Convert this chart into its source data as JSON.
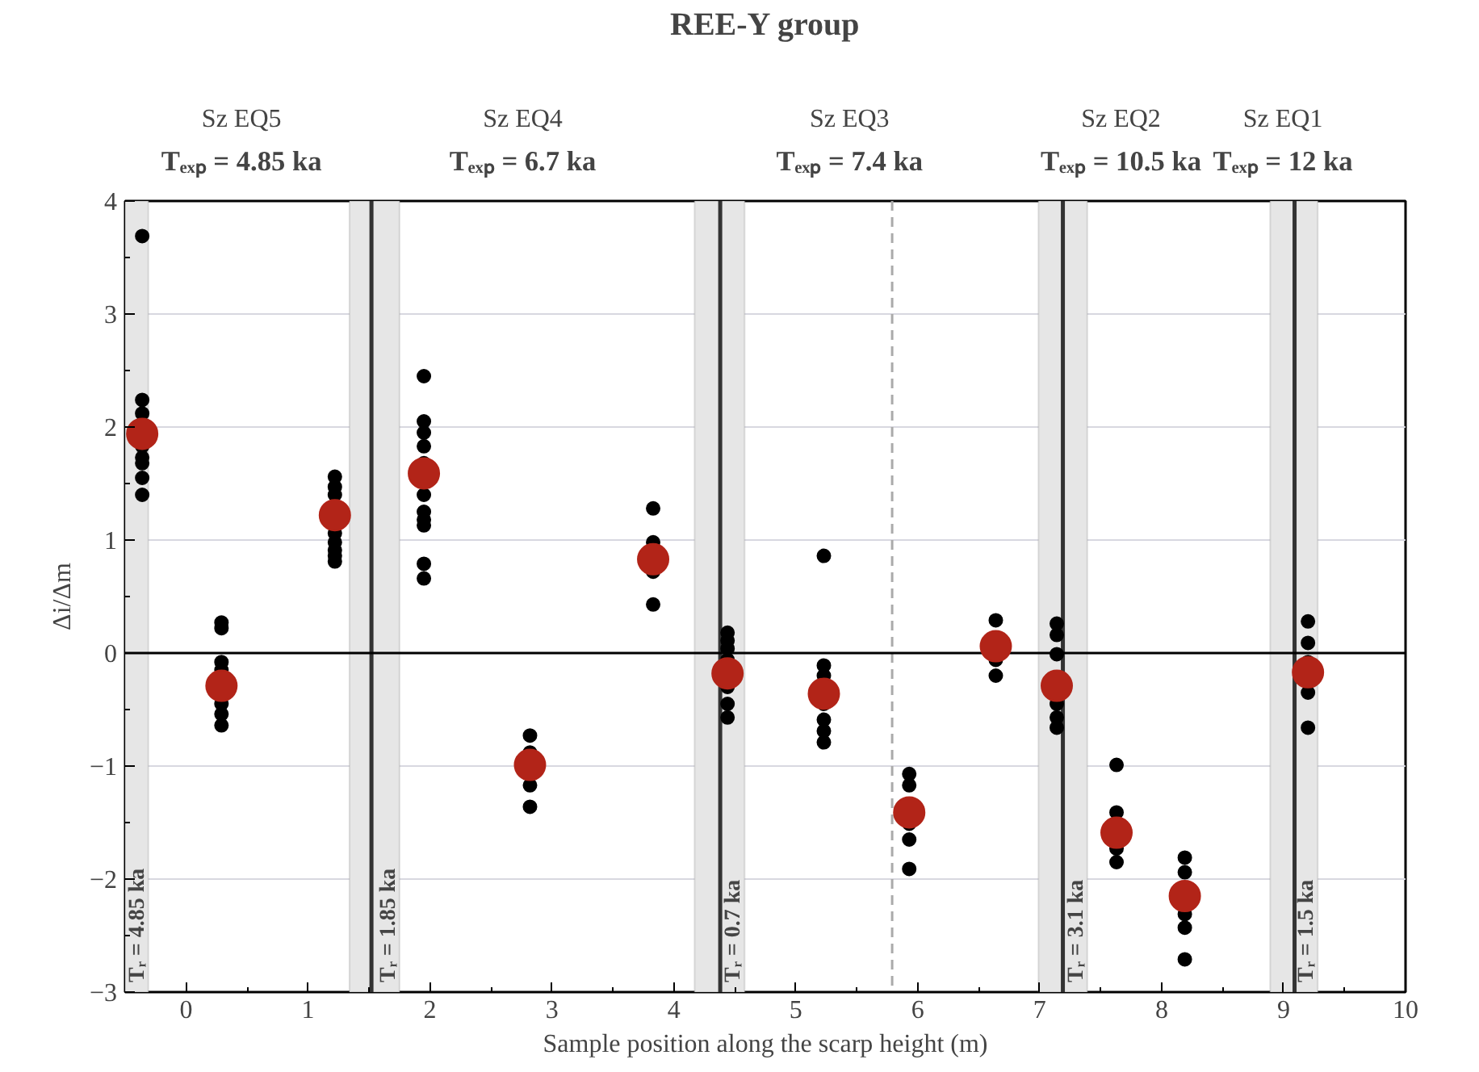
{
  "chart_data": {
    "type": "scatter",
    "title": "REE-Y group",
    "xlabel": "Sample position along the scarp height (m)",
    "ylabel": "Δi/Δm",
    "xlim": [
      -0.5,
      10
    ],
    "ylim": [
      -3,
      4
    ],
    "xticks": [
      0,
      1,
      2,
      3,
      4,
      5,
      6,
      7,
      8,
      9,
      10
    ],
    "yticks": [
      -3,
      -2,
      -1,
      0,
      1,
      2,
      3,
      4
    ],
    "grid": "y",
    "marker": "circle",
    "annotations": [
      "Sz EQ5",
      "Tₑₓₚ = 4.85 ka",
      "Sz EQ4",
      "Tₑₓₚ = 6.7 ka",
      "Sz EQ3",
      "Tₑₓₚ = 7.4 ka",
      "Sz EQ2",
      "Tₑₓₚ = 10.5 ka",
      "Sz EQ1",
      "Tₑₓₚ = 12 ka"
    ],
    "series": [
      {
        "color": "#000000",
        "x": [
          -0.36,
          -0.36,
          -0.36,
          -0.36,
          -0.36,
          -0.36,
          -0.36,
          -0.36,
          0.29,
          0.29,
          0.29,
          0.29,
          0.29,
          0.29,
          0.29,
          1.22,
          1.22,
          1.22,
          1.22,
          1.22,
          1.22,
          1.22,
          1.22,
          1.95,
          1.95,
          1.95,
          1.95,
          1.95,
          1.95,
          1.95,
          1.95,
          1.95,
          1.95,
          1.95,
          2.82,
          2.82,
          2.82,
          2.82,
          3.83,
          3.83,
          3.83,
          3.83,
          4.44,
          4.44,
          4.44,
          4.44,
          4.44,
          4.44,
          4.44,
          5.23,
          5.23,
          5.23,
          5.23,
          5.23,
          5.23,
          5.23,
          5.93,
          5.93,
          5.93,
          5.93,
          5.93,
          6.64,
          6.64,
          6.64,
          7.14,
          7.14,
          7.14,
          7.14,
          7.14,
          7.14,
          7.63,
          7.63,
          7.63,
          7.63,
          8.19,
          8.19,
          8.19,
          8.19,
          8.19,
          9.2,
          9.2,
          9.2,
          9.2,
          9.2
        ],
        "values": [
          3.69,
          2.24,
          2.12,
          1.83,
          1.73,
          1.68,
          1.55,
          1.4,
          0.27,
          0.22,
          -0.08,
          -0.15,
          -0.45,
          -0.54,
          -0.64,
          1.56,
          1.47,
          1.4,
          1.06,
          0.98,
          0.91,
          0.86,
          0.81,
          2.45,
          2.05,
          1.95,
          1.83,
          1.68,
          1.4,
          1.25,
          1.18,
          1.13,
          0.79,
          0.66,
          -0.73,
          -0.88,
          -1.17,
          -1.36,
          1.28,
          0.98,
          0.72,
          0.43,
          0.18,
          0.11,
          0.04,
          -0.06,
          -0.3,
          -0.45,
          -0.57,
          0.86,
          -0.11,
          -0.2,
          -0.45,
          -0.59,
          -0.69,
          -0.79,
          -1.07,
          -1.17,
          -1.51,
          -1.65,
          -1.91,
          0.29,
          -0.06,
          -0.2,
          0.26,
          0.16,
          -0.01,
          -0.45,
          -0.57,
          -0.66,
          -0.99,
          -1.41,
          -1.73,
          -1.85,
          -1.81,
          -1.94,
          -2.31,
          -2.43,
          -2.71,
          0.28,
          0.09,
          -0.08,
          -0.35,
          -0.66
        ]
      },
      {
        "color": "#b22418",
        "x": [
          -0.36,
          0.29,
          1.22,
          1.95,
          2.82,
          3.83,
          4.44,
          5.23,
          5.93,
          6.64,
          7.14,
          7.63,
          8.19,
          9.2
        ],
        "values": [
          1.94,
          -0.29,
          1.22,
          1.59,
          -0.99,
          0.83,
          -0.18,
          -0.36,
          -1.41,
          0.06,
          -0.29,
          -1.59,
          -2.15,
          -0.17
        ]
      }
    ],
    "bands": [
      {
        "axis": "x",
        "from": -0.5,
        "to": -0.31,
        "label": "Tᵣ = 4.85 ka",
        "color": "#e6e6e6"
      },
      {
        "axis": "x",
        "from": 1.34,
        "to": 1.75,
        "label": "Tᵣ = 1.85 ka",
        "color": "#e6e6e6"
      },
      {
        "axis": "x",
        "from": 4.17,
        "to": 4.58,
        "label": "Tᵣ = 0.7 ka",
        "color": "#e6e6e6"
      },
      {
        "axis": "x",
        "from": 6.99,
        "to": 7.39,
        "label": "Tᵣ = 3.1 ka",
        "color": "#e6e6e6"
      },
      {
        "axis": "x",
        "from": 8.89,
        "to": 9.28,
        "label": "Tᵣ = 1.5 ka",
        "color": "#e6e6e6"
      }
    ],
    "ref_lines": [
      {
        "axis": "x",
        "value": 1.52,
        "color": "#333333",
        "line_style": "solid"
      },
      {
        "axis": "x",
        "value": 4.38,
        "color": "#333333",
        "line_style": "solid"
      },
      {
        "axis": "x",
        "value": 7.19,
        "color": "#333333",
        "line_style": "solid"
      },
      {
        "axis": "x",
        "value": 9.09,
        "color": "#333333",
        "line_style": "solid"
      },
      {
        "axis": "x",
        "value": 5.79,
        "color": "#aaaaaa",
        "line_style": "dashed"
      },
      {
        "axis": "y",
        "value": 0,
        "color": "#000000",
        "line_style": "solid"
      }
    ]
  }
}
